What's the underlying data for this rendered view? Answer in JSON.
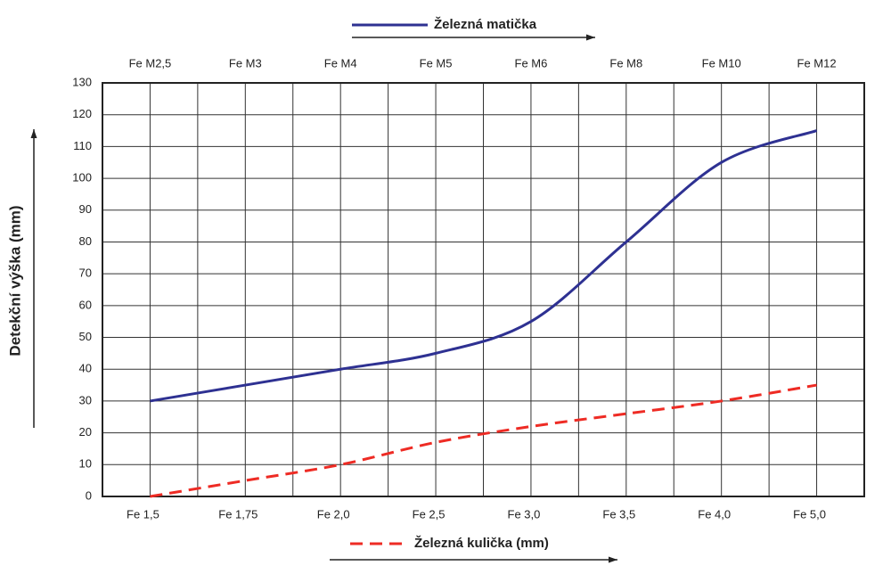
{
  "chart_data": {
    "type": "line",
    "y_label": "Detekční výška (mm)",
    "x_top_labels": [
      "Fe M2,5",
      "Fe M3",
      "Fe M4",
      "Fe M5",
      "Fe M6",
      "Fe M8",
      "Fe M10",
      "Fe M12"
    ],
    "x_bottom_labels": [
      "Fe 1,5",
      "Fe 1,75",
      "Fe 2,0",
      "Fe 2,5",
      "Fe 3,0",
      "Fe 3,5",
      "Fe 4,0",
      "Fe 5,0"
    ],
    "series": [
      {
        "name": "Železná matička",
        "color": "#2e3192",
        "dash": false,
        "values": [
          30,
          35,
          40,
          45,
          55,
          80,
          105,
          115
        ]
      },
      {
        "name": "Železná kulička (mm)",
        "color": "#ee2b24",
        "dash": true,
        "values": [
          0,
          5,
          10,
          17,
          22,
          26,
          30,
          35
        ]
      }
    ],
    "ylim": [
      0,
      130
    ],
    "yticks": [
      0,
      10,
      20,
      30,
      40,
      50,
      60,
      70,
      80,
      90,
      100,
      110,
      120,
      130
    ],
    "grid": true
  }
}
